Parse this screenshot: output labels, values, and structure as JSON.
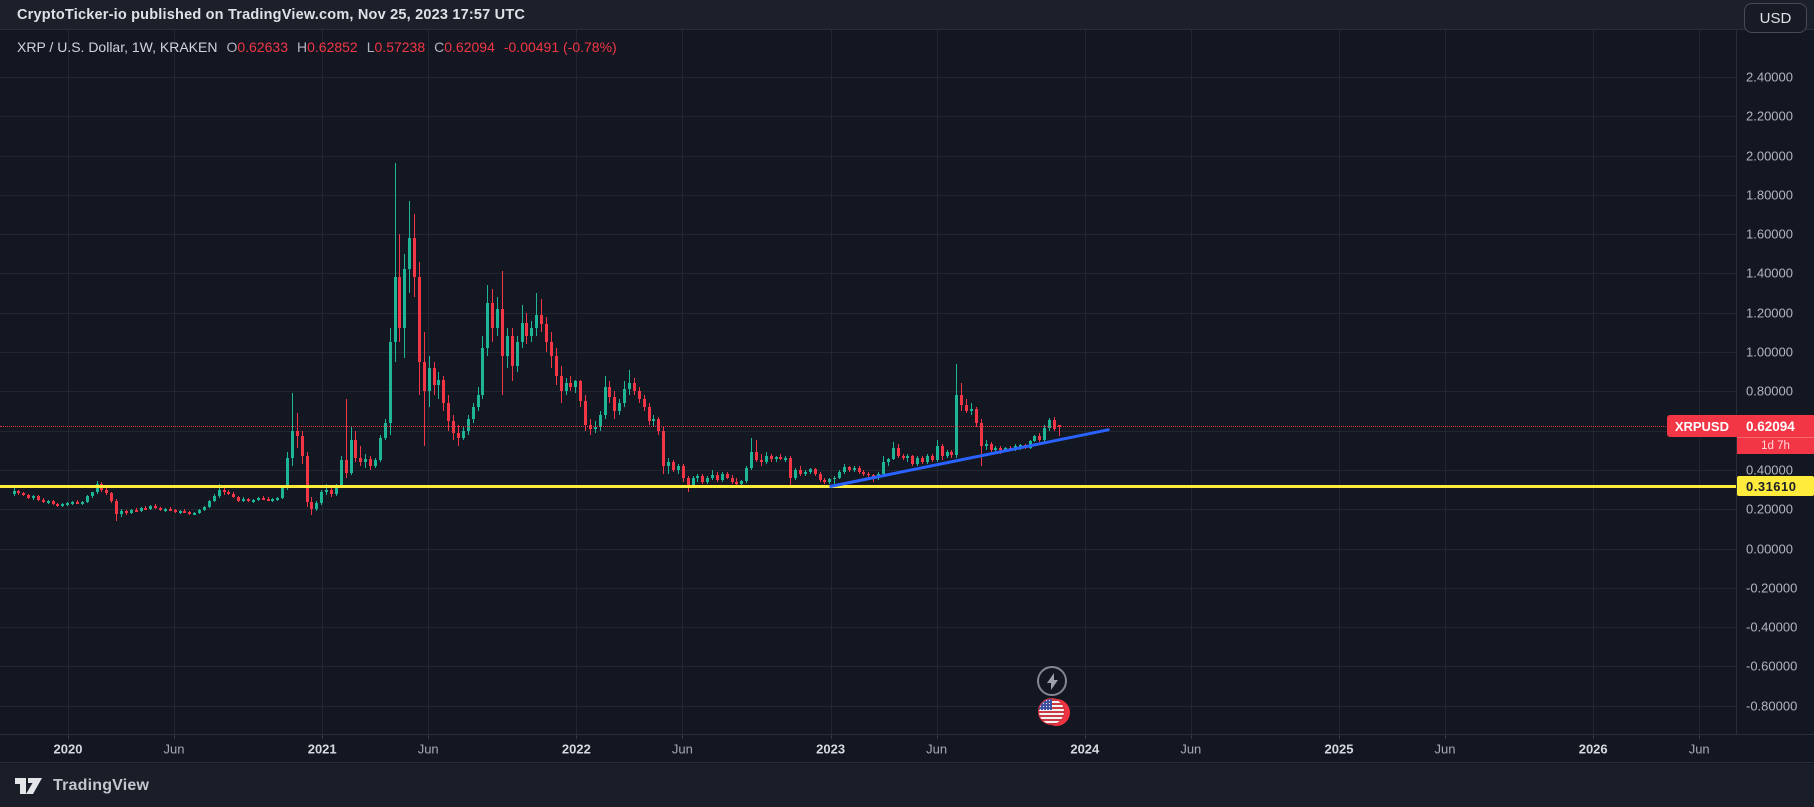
{
  "banner": {
    "text": "CryptoTicker-io published on TradingView.com, Nov 25, 2023 17:57 UTC"
  },
  "legend": {
    "title": "XRP / U.S. Dollar, 1W, KRAKEN",
    "ohlc": [
      {
        "k": "O",
        "v": "0.62633"
      },
      {
        "k": "H",
        "v": "0.62852"
      },
      {
        "k": "L",
        "v": "0.57238"
      },
      {
        "k": "C",
        "v": "0.62094"
      }
    ],
    "change": "-0.00491 (-0.78%)"
  },
  "currency_button": "USD",
  "price_axis": {
    "ticks": [
      {
        "label": "2.40000",
        "value": 2.4
      },
      {
        "label": "2.20000",
        "value": 2.2
      },
      {
        "label": "2.00000",
        "value": 2.0
      },
      {
        "label": "1.80000",
        "value": 1.8
      },
      {
        "label": "1.60000",
        "value": 1.6
      },
      {
        "label": "1.40000",
        "value": 1.4
      },
      {
        "label": "1.20000",
        "value": 1.2
      },
      {
        "label": "1.00000",
        "value": 1.0
      },
      {
        "label": "0.80000",
        "value": 0.8
      },
      {
        "label": "0.40000",
        "value": 0.4
      },
      {
        "label": "0.20000",
        "value": 0.2
      },
      {
        "label": "0.00000",
        "value": 0.0
      },
      {
        "label": "-0.20000",
        "value": -0.2
      },
      {
        "label": "-0.40000",
        "value": -0.4
      },
      {
        "label": "-0.60000",
        "value": -0.6
      },
      {
        "label": "-0.80000",
        "value": -0.8
      }
    ],
    "extra_grid_values": [
      0.6
    ]
  },
  "time_axis": {
    "ticks": [
      {
        "label": "2020",
        "major": true
      },
      {
        "label": "Jun",
        "major": false
      },
      {
        "label": "2021",
        "major": true
      },
      {
        "label": "Jun",
        "major": false
      },
      {
        "label": "2022",
        "major": true
      },
      {
        "label": "Jun",
        "major": false
      },
      {
        "label": "2023",
        "major": true
      },
      {
        "label": "Jun",
        "major": false
      },
      {
        "label": "2024",
        "major": true
      },
      {
        "label": "Jun",
        "major": false
      },
      {
        "label": "2025",
        "major": true
      },
      {
        "label": "Jun",
        "major": false
      },
      {
        "label": "2026",
        "major": true
      },
      {
        "label": "Jun",
        "major": false
      }
    ]
  },
  "footer": {
    "brand": "TradingView"
  },
  "event_markers": [
    "lightning",
    "us-flag"
  ],
  "colors": {
    "up": "#1eb597",
    "down": "#f23645",
    "trendline": "#2962ff",
    "support": "#ffeb3b",
    "last_price": "#f23645",
    "background": "#131722"
  },
  "chart_data": {
    "type": "candlestick",
    "title": "XRP / U.S. Dollar, 1W, KRAKEN",
    "interval": "1W",
    "exchange": "KRAKEN",
    "visible_price_range": [
      -0.94,
      2.46
    ],
    "visible_time_range": [
      "Oct 2019",
      "Jun 2026"
    ],
    "last_price_line": {
      "price": 0.62094,
      "label": "0.62094",
      "symbol": "XRPUSD",
      "countdown": "1d 7h"
    },
    "support_line": {
      "price": 0.3161,
      "label": "0.31610"
    },
    "trendline": {
      "from_index": 167.2,
      "from_price": 0.316,
      "to_index": 224,
      "to_price": 0.604
    },
    "ohlc_note": "weekly candles [open,high,low,close], first candle mid-Oct 2019, last candle week of Nov 20 2023",
    "ohlc": [
      [
        0.275,
        0.31,
        0.265,
        0.295
      ],
      [
        0.295,
        0.3,
        0.27,
        0.28
      ],
      [
        0.28,
        0.29,
        0.265,
        0.27
      ],
      [
        0.27,
        0.275,
        0.25,
        0.255
      ],
      [
        0.255,
        0.27,
        0.245,
        0.265
      ],
      [
        0.265,
        0.27,
        0.24,
        0.245
      ],
      [
        0.245,
        0.255,
        0.23,
        0.235
      ],
      [
        0.235,
        0.245,
        0.225,
        0.24
      ],
      [
        0.24,
        0.245,
        0.22,
        0.225
      ],
      [
        0.225,
        0.23,
        0.21,
        0.215
      ],
      [
        0.215,
        0.23,
        0.21,
        0.225
      ],
      [
        0.225,
        0.235,
        0.215,
        0.23
      ],
      [
        0.23,
        0.24,
        0.22,
        0.235
      ],
      [
        0.235,
        0.245,
        0.225,
        0.23
      ],
      [
        0.23,
        0.24,
        0.22,
        0.235
      ],
      [
        0.235,
        0.27,
        0.23,
        0.265
      ],
      [
        0.265,
        0.29,
        0.255,
        0.285
      ],
      [
        0.285,
        0.345,
        0.275,
        0.33
      ],
      [
        0.33,
        0.34,
        0.29,
        0.3
      ],
      [
        0.3,
        0.31,
        0.27,
        0.28
      ],
      [
        0.28,
        0.285,
        0.23,
        0.24
      ],
      [
        0.24,
        0.25,
        0.14,
        0.175
      ],
      [
        0.175,
        0.2,
        0.16,
        0.19
      ],
      [
        0.19,
        0.195,
        0.17,
        0.18
      ],
      [
        0.18,
        0.2,
        0.175,
        0.195
      ],
      [
        0.195,
        0.205,
        0.185,
        0.19
      ],
      [
        0.19,
        0.21,
        0.185,
        0.205
      ],
      [
        0.205,
        0.215,
        0.195,
        0.2
      ],
      [
        0.2,
        0.22,
        0.195,
        0.215
      ],
      [
        0.215,
        0.225,
        0.2,
        0.205
      ],
      [
        0.205,
        0.21,
        0.19,
        0.195
      ],
      [
        0.195,
        0.205,
        0.185,
        0.2
      ],
      [
        0.2,
        0.21,
        0.19,
        0.195
      ],
      [
        0.195,
        0.2,
        0.18,
        0.185
      ],
      [
        0.185,
        0.195,
        0.175,
        0.19
      ],
      [
        0.19,
        0.2,
        0.18,
        0.185
      ],
      [
        0.185,
        0.19,
        0.17,
        0.175
      ],
      [
        0.175,
        0.185,
        0.17,
        0.18
      ],
      [
        0.18,
        0.2,
        0.175,
        0.195
      ],
      [
        0.195,
        0.215,
        0.19,
        0.21
      ],
      [
        0.21,
        0.245,
        0.205,
        0.24
      ],
      [
        0.24,
        0.275,
        0.235,
        0.265
      ],
      [
        0.265,
        0.327,
        0.255,
        0.3
      ],
      [
        0.3,
        0.31,
        0.27,
        0.285
      ],
      [
        0.285,
        0.3,
        0.27,
        0.275
      ],
      [
        0.275,
        0.285,
        0.255,
        0.26
      ],
      [
        0.26,
        0.265,
        0.235,
        0.24
      ],
      [
        0.24,
        0.26,
        0.235,
        0.25
      ],
      [
        0.25,
        0.255,
        0.235,
        0.24
      ],
      [
        0.24,
        0.25,
        0.23,
        0.245
      ],
      [
        0.245,
        0.26,
        0.24,
        0.255
      ],
      [
        0.255,
        0.265,
        0.245,
        0.25
      ],
      [
        0.25,
        0.26,
        0.24,
        0.245
      ],
      [
        0.245,
        0.255,
        0.235,
        0.25
      ],
      [
        0.25,
        0.26,
        0.24,
        0.255
      ],
      [
        0.255,
        0.32,
        0.25,
        0.31
      ],
      [
        0.31,
        0.49,
        0.3,
        0.46
      ],
      [
        0.46,
        0.79,
        0.42,
        0.6
      ],
      [
        0.6,
        0.69,
        0.51,
        0.57
      ],
      [
        0.57,
        0.6,
        0.43,
        0.47
      ],
      [
        0.47,
        0.49,
        0.21,
        0.235
      ],
      [
        0.235,
        0.26,
        0.17,
        0.2
      ],
      [
        0.2,
        0.24,
        0.19,
        0.23
      ],
      [
        0.23,
        0.3,
        0.22,
        0.285
      ],
      [
        0.285,
        0.33,
        0.27,
        0.3
      ],
      [
        0.3,
        0.32,
        0.26,
        0.275
      ],
      [
        0.275,
        0.33,
        0.265,
        0.32
      ],
      [
        0.32,
        0.47,
        0.31,
        0.45
      ],
      [
        0.45,
        0.76,
        0.36,
        0.385
      ],
      [
        0.385,
        0.62,
        0.375,
        0.55
      ],
      [
        0.55,
        0.6,
        0.44,
        0.46
      ],
      [
        0.46,
        0.52,
        0.42,
        0.44
      ],
      [
        0.44,
        0.48,
        0.41,
        0.455
      ],
      [
        0.455,
        0.47,
        0.4,
        0.42
      ],
      [
        0.42,
        0.46,
        0.41,
        0.45
      ],
      [
        0.45,
        0.58,
        0.44,
        0.56
      ],
      [
        0.56,
        0.66,
        0.55,
        0.64
      ],
      [
        0.64,
        1.12,
        0.58,
        1.05
      ],
      [
        1.05,
        1.96,
        0.95,
        1.38
      ],
      [
        1.38,
        1.6,
        1.05,
        1.12
      ],
      [
        1.12,
        1.5,
        0.97,
        1.42
      ],
      [
        1.42,
        1.77,
        1.3,
        1.58
      ],
      [
        1.58,
        1.7,
        1.28,
        1.38
      ],
      [
        1.38,
        1.46,
        0.78,
        0.95
      ],
      [
        0.95,
        1.1,
        0.52,
        0.8
      ],
      [
        0.8,
        0.98,
        0.72,
        0.92
      ],
      [
        0.92,
        0.95,
        0.78,
        0.83
      ],
      [
        0.83,
        0.9,
        0.76,
        0.86
      ],
      [
        0.86,
        0.88,
        0.7,
        0.74
      ],
      [
        0.74,
        0.78,
        0.6,
        0.65
      ],
      [
        0.65,
        0.68,
        0.55,
        0.59
      ],
      [
        0.59,
        0.63,
        0.52,
        0.56
      ],
      [
        0.56,
        0.62,
        0.55,
        0.6
      ],
      [
        0.6,
        0.68,
        0.58,
        0.66
      ],
      [
        0.66,
        0.74,
        0.64,
        0.72
      ],
      [
        0.72,
        0.82,
        0.7,
        0.78
      ],
      [
        0.78,
        1.08,
        0.76,
        1.02
      ],
      [
        1.02,
        1.34,
        0.98,
        1.25
      ],
      [
        1.25,
        1.32,
        1.05,
        1.12
      ],
      [
        1.12,
        1.28,
        1.08,
        1.22
      ],
      [
        1.22,
        1.41,
        0.78,
        0.98
      ],
      [
        0.98,
        1.12,
        0.92,
        1.08
      ],
      [
        1.08,
        1.12,
        0.85,
        0.93
      ],
      [
        0.93,
        1.08,
        0.9,
        1.05
      ],
      [
        1.05,
        1.24,
        1.02,
        1.15
      ],
      [
        1.15,
        1.2,
        1.04,
        1.08
      ],
      [
        1.08,
        1.16,
        1.05,
        1.12
      ],
      [
        1.12,
        1.3,
        1.08,
        1.19
      ],
      [
        1.19,
        1.27,
        1.1,
        1.14
      ],
      [
        1.14,
        1.18,
        1.0,
        1.05
      ],
      [
        1.05,
        1.1,
        0.92,
        0.98
      ],
      [
        0.98,
        1.02,
        0.83,
        0.88
      ],
      [
        0.88,
        0.93,
        0.74,
        0.8
      ],
      [
        0.8,
        0.87,
        0.78,
        0.84
      ],
      [
        0.84,
        0.88,
        0.8,
        0.82
      ],
      [
        0.82,
        0.86,
        0.79,
        0.85
      ],
      [
        0.85,
        0.86,
        0.72,
        0.75
      ],
      [
        0.75,
        0.78,
        0.6,
        0.63
      ],
      [
        0.63,
        0.66,
        0.58,
        0.61
      ],
      [
        0.61,
        0.65,
        0.59,
        0.62
      ],
      [
        0.62,
        0.7,
        0.6,
        0.68
      ],
      [
        0.68,
        0.88,
        0.66,
        0.82
      ],
      [
        0.82,
        0.85,
        0.74,
        0.77
      ],
      [
        0.77,
        0.8,
        0.66,
        0.7
      ],
      [
        0.7,
        0.76,
        0.68,
        0.74
      ],
      [
        0.74,
        0.85,
        0.72,
        0.81
      ],
      [
        0.81,
        0.91,
        0.78,
        0.84
      ],
      [
        0.84,
        0.87,
        0.78,
        0.8
      ],
      [
        0.8,
        0.82,
        0.74,
        0.76
      ],
      [
        0.76,
        0.78,
        0.7,
        0.72
      ],
      [
        0.72,
        0.74,
        0.63,
        0.65
      ],
      [
        0.65,
        0.68,
        0.62,
        0.66
      ],
      [
        0.66,
        0.67,
        0.58,
        0.6
      ],
      [
        0.6,
        0.62,
        0.38,
        0.42
      ],
      [
        0.42,
        0.46,
        0.38,
        0.44
      ],
      [
        0.44,
        0.45,
        0.39,
        0.4
      ],
      [
        0.4,
        0.43,
        0.38,
        0.42
      ],
      [
        0.42,
        0.43,
        0.34,
        0.36
      ],
      [
        0.36,
        0.37,
        0.285,
        0.32
      ],
      [
        0.32,
        0.37,
        0.31,
        0.36
      ],
      [
        0.36,
        0.38,
        0.34,
        0.37
      ],
      [
        0.37,
        0.38,
        0.33,
        0.34
      ],
      [
        0.34,
        0.37,
        0.33,
        0.36
      ],
      [
        0.36,
        0.4,
        0.35,
        0.375
      ],
      [
        0.375,
        0.39,
        0.34,
        0.35
      ],
      [
        0.35,
        0.39,
        0.34,
        0.38
      ],
      [
        0.38,
        0.39,
        0.355,
        0.36
      ],
      [
        0.36,
        0.375,
        0.33,
        0.34
      ],
      [
        0.34,
        0.36,
        0.32,
        0.33
      ],
      [
        0.33,
        0.35,
        0.32,
        0.345
      ],
      [
        0.345,
        0.42,
        0.335,
        0.41
      ],
      [
        0.41,
        0.56,
        0.4,
        0.49
      ],
      [
        0.49,
        0.55,
        0.44,
        0.45
      ],
      [
        0.45,
        0.48,
        0.42,
        0.44
      ],
      [
        0.44,
        0.49,
        0.43,
        0.47
      ],
      [
        0.47,
        0.48,
        0.44,
        0.455
      ],
      [
        0.455,
        0.47,
        0.44,
        0.465
      ],
      [
        0.465,
        0.48,
        0.45,
        0.455
      ],
      [
        0.455,
        0.47,
        0.44,
        0.46
      ],
      [
        0.46,
        0.47,
        0.32,
        0.36
      ],
      [
        0.36,
        0.41,
        0.35,
        0.4
      ],
      [
        0.4,
        0.42,
        0.37,
        0.38
      ],
      [
        0.38,
        0.4,
        0.37,
        0.39
      ],
      [
        0.39,
        0.41,
        0.38,
        0.405
      ],
      [
        0.405,
        0.41,
        0.37,
        0.38
      ],
      [
        0.38,
        0.39,
        0.34,
        0.35
      ],
      [
        0.35,
        0.36,
        0.33,
        0.34
      ],
      [
        0.34,
        0.36,
        0.33,
        0.355
      ],
      [
        0.355,
        0.37,
        0.33,
        0.36
      ],
      [
        0.36,
        0.4,
        0.355,
        0.39
      ],
      [
        0.39,
        0.43,
        0.38,
        0.415
      ],
      [
        0.415,
        0.42,
        0.39,
        0.4
      ],
      [
        0.4,
        0.42,
        0.39,
        0.41
      ],
      [
        0.41,
        0.42,
        0.38,
        0.39
      ],
      [
        0.39,
        0.4,
        0.37,
        0.38
      ],
      [
        0.38,
        0.39,
        0.365,
        0.375
      ],
      [
        0.375,
        0.38,
        0.34,
        0.36
      ],
      [
        0.36,
        0.39,
        0.35,
        0.38
      ],
      [
        0.38,
        0.47,
        0.37,
        0.44
      ],
      [
        0.44,
        0.46,
        0.42,
        0.455
      ],
      [
        0.455,
        0.54,
        0.45,
        0.51
      ],
      [
        0.51,
        0.53,
        0.46,
        0.47
      ],
      [
        0.47,
        0.48,
        0.45,
        0.46
      ],
      [
        0.46,
        0.48,
        0.44,
        0.47
      ],
      [
        0.47,
        0.475,
        0.42,
        0.43
      ],
      [
        0.43,
        0.47,
        0.42,
        0.46
      ],
      [
        0.46,
        0.47,
        0.43,
        0.44
      ],
      [
        0.44,
        0.48,
        0.43,
        0.47
      ],
      [
        0.47,
        0.48,
        0.44,
        0.45
      ],
      [
        0.45,
        0.55,
        0.44,
        0.52
      ],
      [
        0.52,
        0.53,
        0.45,
        0.47
      ],
      [
        0.47,
        0.5,
        0.46,
        0.49
      ],
      [
        0.49,
        0.5,
        0.46,
        0.475
      ],
      [
        0.475,
        0.94,
        0.46,
        0.78
      ],
      [
        0.78,
        0.84,
        0.7,
        0.73
      ],
      [
        0.73,
        0.76,
        0.69,
        0.7
      ],
      [
        0.7,
        0.74,
        0.68,
        0.71
      ],
      [
        0.71,
        0.72,
        0.62,
        0.64
      ],
      [
        0.64,
        0.66,
        0.42,
        0.52
      ],
      [
        0.52,
        0.55,
        0.5,
        0.53
      ],
      [
        0.53,
        0.54,
        0.49,
        0.5
      ],
      [
        0.5,
        0.52,
        0.49,
        0.51
      ],
      [
        0.51,
        0.52,
        0.48,
        0.5
      ],
      [
        0.5,
        0.515,
        0.49,
        0.51
      ],
      [
        0.51,
        0.52,
        0.495,
        0.5
      ],
      [
        0.5,
        0.53,
        0.495,
        0.52
      ],
      [
        0.52,
        0.53,
        0.5,
        0.525
      ],
      [
        0.525,
        0.53,
        0.505,
        0.51
      ],
      [
        0.51,
        0.55,
        0.505,
        0.545
      ],
      [
        0.545,
        0.58,
        0.54,
        0.57
      ],
      [
        0.57,
        0.59,
        0.54,
        0.55
      ],
      [
        0.55,
        0.63,
        0.54,
        0.615
      ],
      [
        0.615,
        0.665,
        0.6,
        0.655
      ],
      [
        0.655,
        0.67,
        0.6,
        0.61
      ],
      [
        0.62633,
        0.62852,
        0.57238,
        0.62094
      ]
    ]
  }
}
